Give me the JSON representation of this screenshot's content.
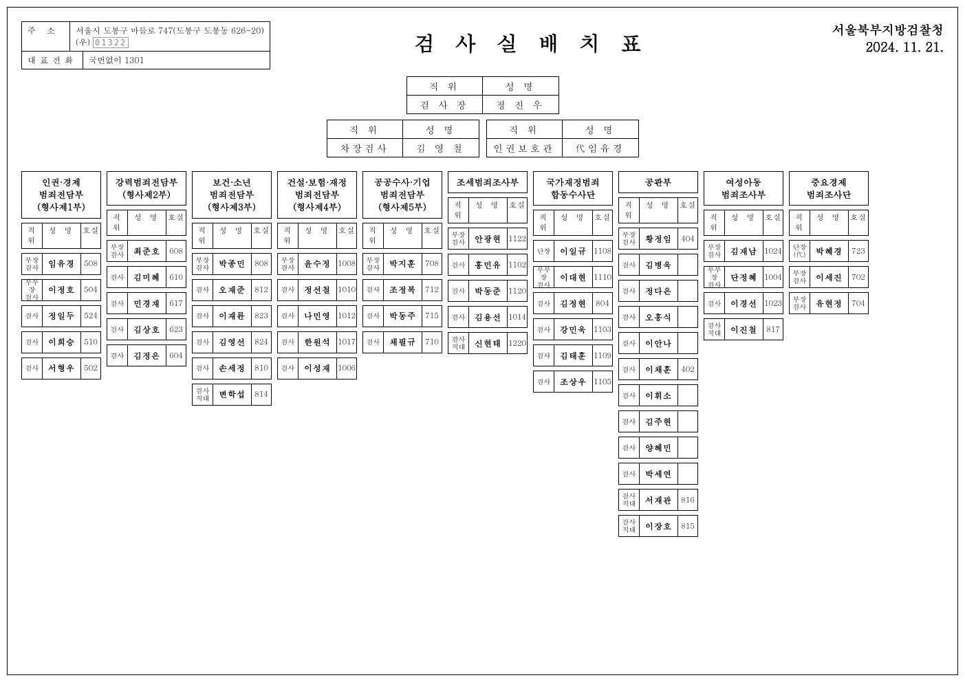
{
  "address": {
    "label1": "주 소",
    "line1": "서울시 도봉구 마들로 747(도봉구 도봉동 626-20)",
    "postal_prefix": "(우)",
    "postal": "01322",
    "label2": "대표전화",
    "phone": "국번없이 1301"
  },
  "title": "검사실배치표",
  "org": "서울북부지방검찰청",
  "date": "2024. 11. 21.",
  "leaders": {
    "top": {
      "pos_h": "직 위",
      "name_h": "성 명",
      "pos": "검 사 장",
      "name": "정 진 우"
    },
    "left": {
      "pos_h": "직 위",
      "name_h": "성 명",
      "pos": "차장검사",
      "name": "김 영 철"
    },
    "right": {
      "pos_h": "직 위",
      "name_h": "성 명",
      "pos": "인권보호관",
      "name": "代임유경"
    }
  },
  "col_headers": {
    "pos": "직 위",
    "name": "성 명",
    "room": "호실"
  },
  "depts": [
    {
      "title": "인권·경제\n범죄전담부\n(형사제1부)",
      "rows": [
        {
          "pos": "부장\n검사",
          "name": "임유경",
          "room": "508"
        },
        {
          "pos": "부부장\n검사",
          "name": "이정호",
          "room": "504"
        },
        {
          "pos": "검사",
          "name": "정일두",
          "room": "524"
        },
        {
          "pos": "검사",
          "name": "이희승",
          "room": "510"
        },
        {
          "pos": "검사",
          "name": "서형우",
          "room": "502"
        }
      ]
    },
    {
      "title": "강력범죄전담부\n(형사제2부)",
      "rows": [
        {
          "pos": "부장\n검사",
          "name": "최준호",
          "room": "608"
        },
        {
          "pos": "검사",
          "name": "김미혜",
          "room": "610"
        },
        {
          "pos": "검사",
          "name": "민경재",
          "room": "617"
        },
        {
          "pos": "검사",
          "name": "김상호",
          "room": "623"
        },
        {
          "pos": "검사",
          "name": "김정은",
          "room": "604"
        }
      ]
    },
    {
      "title": "보건·소년\n범죄전담부\n(형사제3부)",
      "rows": [
        {
          "pos": "부장\n검사",
          "name": "박종민",
          "room": "808"
        },
        {
          "pos": "검사",
          "name": "오재준",
          "room": "812"
        },
        {
          "pos": "검사",
          "name": "이재륜",
          "room": "823"
        },
        {
          "pos": "검사",
          "name": "김영선",
          "room": "824"
        },
        {
          "pos": "검사",
          "name": "손세정",
          "room": "810"
        },
        {
          "pos": "검사\n직대",
          "name": "변학섭",
          "room": "814"
        }
      ]
    },
    {
      "title": "건설·보험·재정\n범죄전담부\n(형사제4부)",
      "rows": [
        {
          "pos": "부장\n검사",
          "name": "윤수정",
          "room": "1008"
        },
        {
          "pos": "검사",
          "name": "정선철",
          "room": "1010"
        },
        {
          "pos": "검사",
          "name": "나민영",
          "room": "1012"
        },
        {
          "pos": "검사",
          "name": "한원석",
          "room": "1017"
        },
        {
          "pos": "검사",
          "name": "이성재",
          "room": "1006"
        }
      ]
    },
    {
      "title": "공공수사·기업\n범죄전담부\n(형사제5부)",
      "rows": [
        {
          "pos": "부장\n검사",
          "name": "박지훈",
          "room": "708"
        },
        {
          "pos": "검사",
          "name": "조정복",
          "room": "712"
        },
        {
          "pos": "검사",
          "name": "박동주",
          "room": "715"
        },
        {
          "pos": "검사",
          "name": "채필규",
          "room": "710"
        }
      ]
    },
    {
      "title": "조세범죄조사부",
      "rows": [
        {
          "pos": "부장\n검사",
          "name": "안광현",
          "room": "1122"
        },
        {
          "pos": "검사",
          "name": "홍민유",
          "room": "1102"
        },
        {
          "pos": "검사",
          "name": "박동준",
          "room": "1120"
        },
        {
          "pos": "검사",
          "name": "김용선",
          "room": "1014"
        },
        {
          "pos": "검사\n직대",
          "name": "신현태",
          "room": "1220"
        }
      ]
    },
    {
      "title": "국가재정범죄\n합동수사단",
      "rows": [
        {
          "pos": "단장",
          "name": "이일규",
          "room": "1108"
        },
        {
          "pos": "부부장\n검사",
          "name": "이대현",
          "room": "1110"
        },
        {
          "pos": "검사",
          "name": "김정현",
          "room": "804"
        },
        {
          "pos": "검사",
          "name": "강민욱",
          "room": "1103"
        },
        {
          "pos": "검사",
          "name": "김태훈",
          "room": "1109"
        },
        {
          "pos": "검사",
          "name": "조상우",
          "room": "1105"
        }
      ]
    },
    {
      "title": "공판부",
      "rows": [
        {
          "pos": "부장\n검사",
          "name": "황정임",
          "room": "404"
        },
        {
          "pos": "검사",
          "name": "김병욱",
          "room": ""
        },
        {
          "pos": "검사",
          "name": "정다은",
          "room": ""
        },
        {
          "pos": "검사",
          "name": "오흥식",
          "room": ""
        },
        {
          "pos": "검사",
          "name": "이안나",
          "room": ""
        },
        {
          "pos": "검사",
          "name": "이채훈",
          "room": "402"
        },
        {
          "pos": "검사",
          "name": "이휘소",
          "room": ""
        },
        {
          "pos": "검사",
          "name": "김주현",
          "room": ""
        },
        {
          "pos": "검사",
          "name": "양혜민",
          "room": ""
        },
        {
          "pos": "검사",
          "name": "박세연",
          "room": ""
        },
        {
          "pos": "검사\n직대",
          "name": "서재관",
          "room": "816"
        },
        {
          "pos": "검사\n직대",
          "name": "이장호",
          "room": "815"
        }
      ]
    },
    {
      "title": "여성아동\n범죄조사부",
      "rows": [
        {
          "pos": "부장\n검사",
          "name": "김재남",
          "room": "1024"
        },
        {
          "pos": "부부장\n검사",
          "name": "단정혜",
          "room": "1004"
        },
        {
          "pos": "검사",
          "name": "이경선",
          "room": "1023"
        },
        {
          "pos": "검사\n직대",
          "name": "이진철",
          "room": "817"
        }
      ]
    },
    {
      "title": "중요경제\n범죄조사단",
      "rows": [
        {
          "pos": "단장\n(代)",
          "name": "박혜경",
          "room": "723"
        },
        {
          "pos": "부장\n검사",
          "name": "이세진",
          "room": "702"
        },
        {
          "pos": "부장\n검사",
          "name": "유현정",
          "room": "704"
        }
      ]
    }
  ]
}
